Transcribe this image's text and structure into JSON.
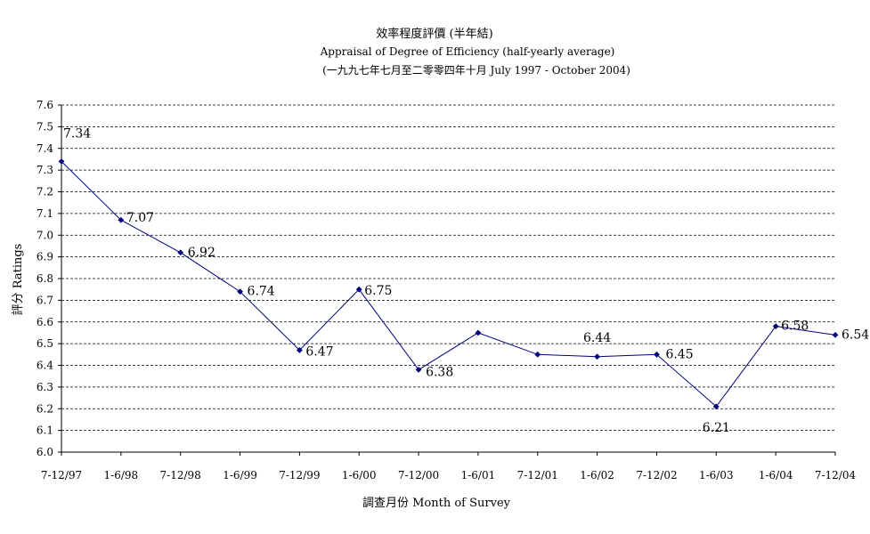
{
  "chart_data": {
    "type": "line",
    "title": "效率程度評價 (半年結)",
    "subtitle": "Appraisal of Degree of Efficiency (half-yearly average)",
    "period": "(一九九七年七月至二零零四年十月 July 1997 -  October 2004)",
    "xlabel": "調查月份 Month of Survey",
    "ylabel": "評分 Ratings",
    "ylim": [
      6.0,
      7.6
    ],
    "ystep": 0.1,
    "yticks": [
      "6.0",
      "6.1",
      "6.2",
      "6.3",
      "6.4",
      "6.5",
      "6.6",
      "6.7",
      "6.8",
      "6.9",
      "7.0",
      "7.1",
      "7.2",
      "7.3",
      "7.4",
      "7.5",
      "7.6"
    ],
    "grid": true,
    "legend": "none",
    "categories": [
      "7-12/97",
      "1-6/98",
      "7-12/98",
      "1-6/99",
      "7-12/99",
      "1-6/00",
      "7-12/00",
      "1-6/01",
      "7-12/01",
      "1-6/02",
      "7-12/02",
      "1-6/03",
      "1-6/04",
      "7-12/04"
    ],
    "series": [
      {
        "values": [
          7.34,
          7.07,
          6.92,
          6.74,
          6.47,
          6.75,
          6.38,
          6.55,
          6.45,
          6.44,
          6.45,
          6.21,
          6.58,
          6.54
        ],
        "labels": [
          "7.34",
          "7.07",
          "6.92",
          "6.74",
          "6.47",
          "6.75",
          "6.38",
          null,
          null,
          "6.44",
          "6.45",
          "6.21",
          "6.58",
          "6.54"
        ],
        "color": "#00007f"
      }
    ]
  }
}
